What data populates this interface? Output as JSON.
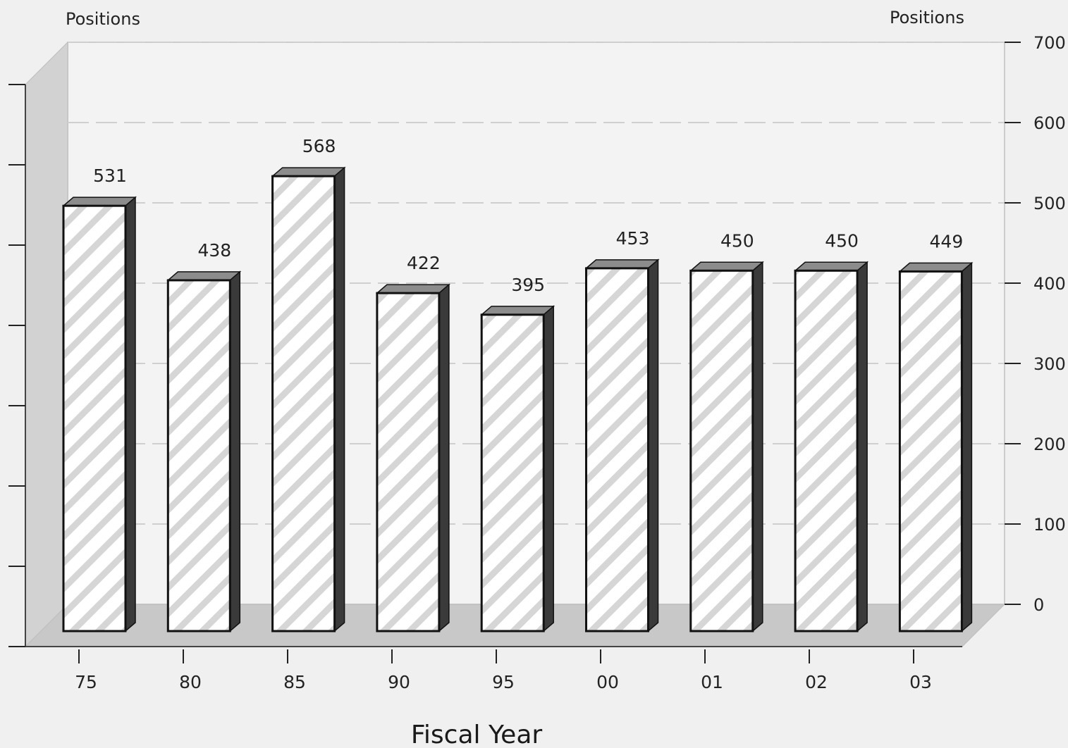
{
  "chart_data": {
    "type": "bar",
    "title": "",
    "xlabel": "Fiscal Year",
    "ylabel_left": "Positions",
    "ylabel_right": "Positions",
    "categories": [
      "75",
      "80",
      "85",
      "90",
      "95",
      "00",
      "01",
      "02",
      "03"
    ],
    "values": [
      531,
      438,
      568,
      422,
      395,
      453,
      450,
      450,
      449
    ],
    "data_labels": [
      "531",
      "438",
      "568",
      "422",
      "395",
      "453",
      "450",
      "450",
      "449"
    ],
    "ylim": [
      0,
      700
    ],
    "yticks": [
      "0",
      "100",
      "200",
      "300",
      "400",
      "500",
      "600",
      "700"
    ],
    "grid": true,
    "legend": "none",
    "style": "3d-hatched-bars",
    "colors": {
      "background": "#f0f0f0",
      "bar_face": "#ffffff",
      "bar_hatch": "#d6d6d6",
      "bar_top": "#8c8c8c",
      "bar_side": "#3a3a3a",
      "floor": "#c8c8c8",
      "back_wall": "#f3f3f3",
      "side_wall": "#d2d2d2",
      "grid": "#cfcfcf"
    }
  }
}
